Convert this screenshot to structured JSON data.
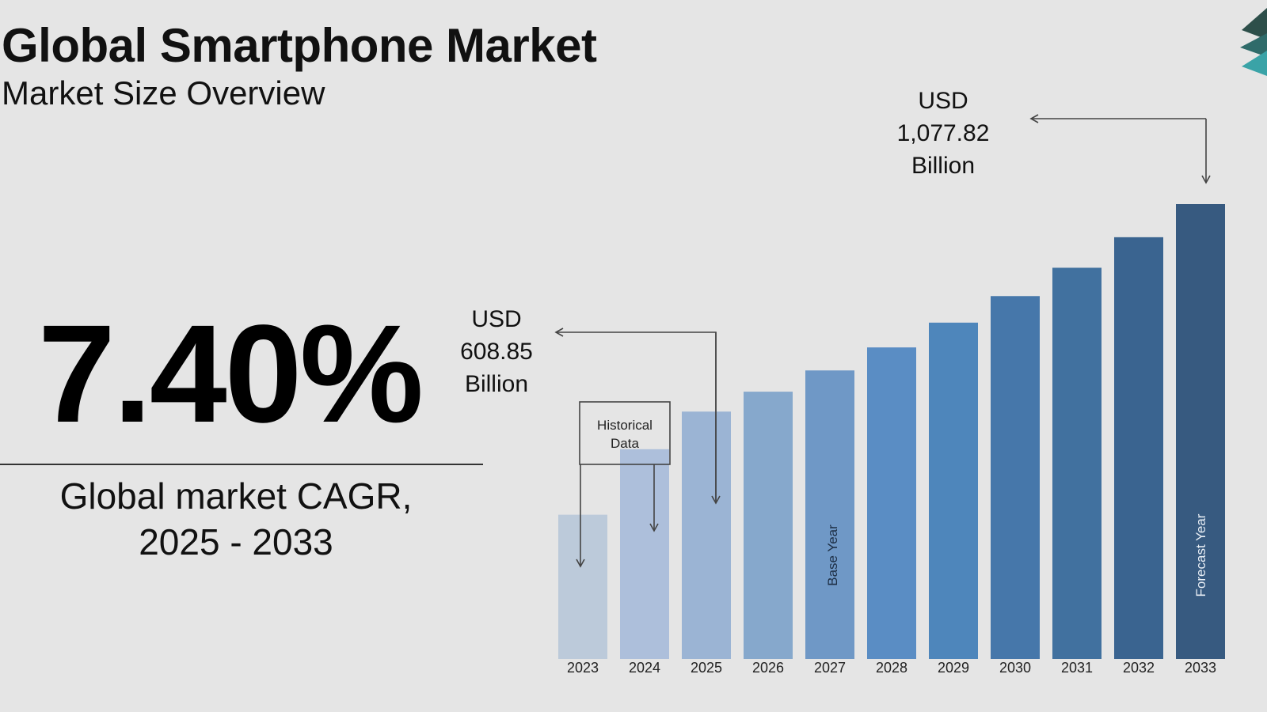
{
  "header": {
    "title": "Global Smartphone Market",
    "subtitle": "Market Size Overview"
  },
  "cagr": {
    "value": "7.40%",
    "caption_line1": "Global market CAGR,",
    "caption_line2": "2025 - 2033"
  },
  "chart_data": {
    "type": "bar",
    "categories": [
      "2023",
      "2024",
      "2025",
      "2026",
      "2027",
      "2028",
      "2029",
      "2030",
      "2031",
      "2032",
      "2033"
    ],
    "values": [
      376,
      524,
      609,
      654,
      702,
      754,
      810,
      870,
      934,
      1003,
      1077.82
    ],
    "ylim": [
      50,
      1100
    ],
    "annotations": {
      "start_value": {
        "line1": "USD",
        "line2": "608.85",
        "line3": "Billion"
      },
      "end_value": {
        "line1": "USD",
        "line2": "1,077.82",
        "line3": "Billion"
      },
      "historical_box": {
        "line1": "Historical",
        "line2": "Data"
      },
      "base_year_label": "Base Year",
      "forecast_year_label": "Forecast Year"
    },
    "bar_colors": [
      "#bccada",
      "#adbfdb",
      "#9bb4d4",
      "#86a8cc",
      "#6f98c6",
      "#5a8dc4",
      "#4e86bb",
      "#4677aa",
      "#41719f",
      "#3a6490",
      "#375a80"
    ],
    "grid": false,
    "legend": "none"
  },
  "colors": {
    "background": "#e5e5e5",
    "text": "#111111",
    "arrow": "#444444"
  },
  "logo_icon": "layered-diamonds-logo-icon"
}
